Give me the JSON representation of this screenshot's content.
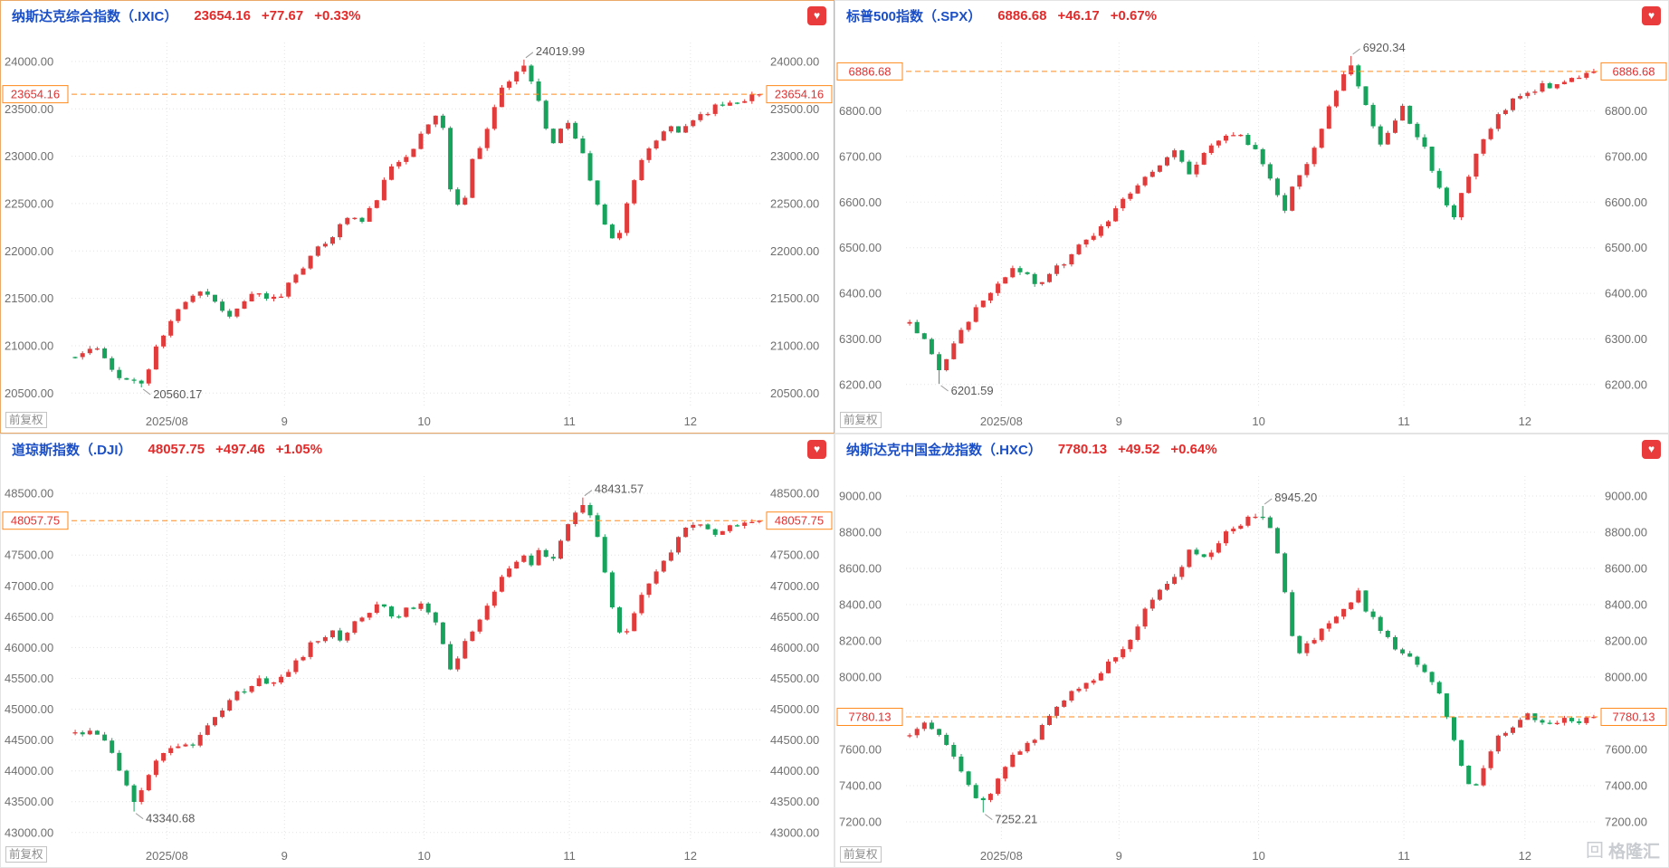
{
  "page": {
    "background": "#ffffff"
  },
  "watermark": {
    "text": "格隆汇"
  },
  "icons": {
    "heart_glyph": "♥",
    "logo_glyph": "回"
  },
  "colors": {
    "up_candle": "#e23b3b",
    "down_candle": "#18a35c",
    "current_price_line": "#ff8a1e",
    "current_price_text": "#e03131",
    "index_title": "#1a4fc8",
    "quote_up_text": "#e22a2a",
    "grid": "#e3e3e3",
    "axis_text": "#6f6f6f",
    "annotation_text": "#595959",
    "favorite_badge": "#e93b3b",
    "selected_panel_border": "#eba969"
  },
  "chart_data": [
    {
      "type": "candlestick",
      "symbol": ".IXIC",
      "title": "纳斯达克综合指数（.IXIC）",
      "price": "23654.16",
      "change": "+77.67",
      "change_pct": "+0.33%",
      "current": 23654.16,
      "adjust_label": "前复权",
      "ylim": [
        20350,
        24200
      ],
      "yticks": [
        24000,
        23500,
        23000,
        22500,
        22000,
        21500,
        21000,
        20500
      ],
      "xticks": [
        "2025/08",
        "9",
        "10",
        "11",
        "12"
      ],
      "xtick_positions": [
        0.138,
        0.308,
        0.51,
        0.72,
        0.895
      ],
      "high_annotation": {
        "label": "24019.99",
        "value": 24019.99,
        "f": 0.655
      },
      "low_annotation": {
        "label": "20560.17",
        "value": 20560.17,
        "f": 0.1
      },
      "price_path": [
        [
          0,
          20880
        ],
        [
          0.03,
          20990
        ],
        [
          0.05,
          20760
        ],
        [
          0.075,
          20640
        ],
        [
          0.1,
          20600
        ],
        [
          0.12,
          21000
        ],
        [
          0.14,
          21250
        ],
        [
          0.16,
          21480
        ],
        [
          0.18,
          21600
        ],
        [
          0.2,
          21520
        ],
        [
          0.22,
          21310
        ],
        [
          0.24,
          21400
        ],
        [
          0.26,
          21570
        ],
        [
          0.28,
          21470
        ],
        [
          0.3,
          21520
        ],
        [
          0.32,
          21750
        ],
        [
          0.34,
          21900
        ],
        [
          0.36,
          22050
        ],
        [
          0.38,
          22200
        ],
        [
          0.4,
          22380
        ],
        [
          0.42,
          22300
        ],
        [
          0.44,
          22550
        ],
        [
          0.46,
          22850
        ],
        [
          0.48,
          23000
        ],
        [
          0.5,
          23150
        ],
        [
          0.52,
          23380
        ],
        [
          0.535,
          23480
        ],
        [
          0.55,
          22550
        ],
        [
          0.565,
          22420
        ],
        [
          0.58,
          22950
        ],
        [
          0.6,
          23250
        ],
        [
          0.62,
          23650
        ],
        [
          0.64,
          23850
        ],
        [
          0.655,
          23980
        ],
        [
          0.67,
          23780
        ],
        [
          0.685,
          23350
        ],
        [
          0.7,
          23100
        ],
        [
          0.715,
          23420
        ],
        [
          0.73,
          23220
        ],
        [
          0.745,
          22950
        ],
        [
          0.76,
          22600
        ],
        [
          0.775,
          22250
        ],
        [
          0.79,
          22060
        ],
        [
          0.805,
          22480
        ],
        [
          0.82,
          22820
        ],
        [
          0.835,
          23020
        ],
        [
          0.85,
          23160
        ],
        [
          0.865,
          23320
        ],
        [
          0.88,
          23230
        ],
        [
          0.9,
          23380
        ],
        [
          0.92,
          23470
        ],
        [
          0.95,
          23560
        ],
        [
          1,
          23654.16
        ]
      ]
    },
    {
      "type": "candlestick",
      "symbol": ".SPX",
      "title": "标普500指数（.SPX）",
      "price": "6886.68",
      "change": "+46.17",
      "change_pct": "+0.67%",
      "current": 6886.68,
      "adjust_label": "前复权",
      "ylim": [
        6150,
        6950
      ],
      "yticks": [
        6800,
        6700,
        6600,
        6500,
        6400,
        6300,
        6200
      ],
      "xticks": [
        "2025/08",
        "9",
        "10",
        "11",
        "12"
      ],
      "xtick_positions": [
        0.138,
        0.308,
        0.51,
        0.72,
        0.895
      ],
      "high_annotation": {
        "label": "6920.34",
        "value": 6920.34,
        "f": 0.645
      },
      "low_annotation": {
        "label": "6201.59",
        "value": 6201.59,
        "f": 0.045
      },
      "price_path": [
        [
          0,
          6335
        ],
        [
          0.02,
          6305
        ],
        [
          0.045,
          6225
        ],
        [
          0.07,
          6305
        ],
        [
          0.09,
          6355
        ],
        [
          0.11,
          6395
        ],
        [
          0.13,
          6425
        ],
        [
          0.15,
          6455
        ],
        [
          0.17,
          6440
        ],
        [
          0.19,
          6415
        ],
        [
          0.21,
          6450
        ],
        [
          0.23,
          6475
        ],
        [
          0.25,
          6505
        ],
        [
          0.27,
          6525
        ],
        [
          0.29,
          6565
        ],
        [
          0.31,
          6595
        ],
        [
          0.33,
          6640
        ],
        [
          0.35,
          6665
        ],
        [
          0.37,
          6695
        ],
        [
          0.39,
          6715
        ],
        [
          0.41,
          6660
        ],
        [
          0.43,
          6705
        ],
        [
          0.45,
          6740
        ],
        [
          0.47,
          6755
        ],
        [
          0.49,
          6735
        ],
        [
          0.51,
          6705
        ],
        [
          0.53,
          6645
        ],
        [
          0.545,
          6575
        ],
        [
          0.56,
          6635
        ],
        [
          0.58,
          6685
        ],
        [
          0.6,
          6745
        ],
        [
          0.62,
          6835
        ],
        [
          0.645,
          6905
        ],
        [
          0.66,
          6845
        ],
        [
          0.675,
          6785
        ],
        [
          0.69,
          6715
        ],
        [
          0.705,
          6775
        ],
        [
          0.72,
          6805
        ],
        [
          0.735,
          6765
        ],
        [
          0.75,
          6725
        ],
        [
          0.765,
          6665
        ],
        [
          0.78,
          6605
        ],
        [
          0.795,
          6565
        ],
        [
          0.81,
          6635
        ],
        [
          0.825,
          6695
        ],
        [
          0.84,
          6745
        ],
        [
          0.855,
          6775
        ],
        [
          0.87,
          6805
        ],
        [
          0.885,
          6825
        ],
        [
          0.9,
          6845
        ],
        [
          0.93,
          6855
        ],
        [
          0.96,
          6865
        ],
        [
          1,
          6886.68
        ]
      ]
    },
    {
      "type": "candlestick",
      "symbol": ".DJI",
      "title": "道琼斯指数（.DJI）",
      "price": "48057.75",
      "change": "+497.46",
      "change_pct": "+1.05%",
      "current": 48057.75,
      "adjust_label": "前复权",
      "ylim": [
        42850,
        48780
      ],
      "yticks": [
        48500,
        48000,
        47500,
        47000,
        46500,
        46000,
        45500,
        45000,
        44500,
        44000,
        43500,
        43000
      ],
      "xticks": [
        "2025/08",
        "9",
        "10",
        "11",
        "12"
      ],
      "xtick_positions": [
        0.138,
        0.308,
        0.51,
        0.72,
        0.895
      ],
      "high_annotation": {
        "label": "48431.57",
        "value": 48431.57,
        "f": 0.745
      },
      "low_annotation": {
        "label": "43340.68",
        "value": 43340.68,
        "f": 0.09
      },
      "price_path": [
        [
          0,
          44600
        ],
        [
          0.025,
          44650
        ],
        [
          0.05,
          44400
        ],
        [
          0.07,
          43900
        ],
        [
          0.09,
          43450
        ],
        [
          0.11,
          44000
        ],
        [
          0.13,
          44300
        ],
        [
          0.15,
          44450
        ],
        [
          0.17,
          44350
        ],
        [
          0.19,
          44700
        ],
        [
          0.21,
          44950
        ],
        [
          0.23,
          45200
        ],
        [
          0.25,
          45350
        ],
        [
          0.27,
          45500
        ],
        [
          0.29,
          45400
        ],
        [
          0.31,
          45550
        ],
        [
          0.33,
          45850
        ],
        [
          0.35,
          46100
        ],
        [
          0.37,
          46250
        ],
        [
          0.39,
          46150
        ],
        [
          0.41,
          46400
        ],
        [
          0.43,
          46600
        ],
        [
          0.45,
          46700
        ],
        [
          0.47,
          46450
        ],
        [
          0.49,
          46650
        ],
        [
          0.51,
          46700
        ],
        [
          0.53,
          46300
        ],
        [
          0.55,
          45650
        ],
        [
          0.57,
          46050
        ],
        [
          0.59,
          46450
        ],
        [
          0.61,
          46850
        ],
        [
          0.63,
          47250
        ],
        [
          0.65,
          47500
        ],
        [
          0.665,
          47350
        ],
        [
          0.68,
          47600
        ],
        [
          0.695,
          47400
        ],
        [
          0.71,
          47700
        ],
        [
          0.725,
          48050
        ],
        [
          0.745,
          48350
        ],
        [
          0.76,
          47900
        ],
        [
          0.775,
          47200
        ],
        [
          0.79,
          46400
        ],
        [
          0.8,
          46050
        ],
        [
          0.815,
          46450
        ],
        [
          0.83,
          46900
        ],
        [
          0.845,
          47200
        ],
        [
          0.86,
          47450
        ],
        [
          0.875,
          47650
        ],
        [
          0.89,
          47900
        ],
        [
          0.905,
          48000
        ],
        [
          0.92,
          47900
        ],
        [
          0.94,
          47850
        ],
        [
          0.96,
          48000
        ],
        [
          1,
          48057.75
        ]
      ]
    },
    {
      "type": "candlestick",
      "symbol": ".HXC",
      "title": "纳斯达克中国金龙指数（.HXC）",
      "price": "7780.13",
      "change": "+49.52",
      "change_pct": "+0.64%",
      "current": 7780.13,
      "adjust_label": "前复权",
      "ylim": [
        7090,
        9110
      ],
      "yticks": [
        9000,
        8800,
        8600,
        8400,
        8200,
        8000,
        7800,
        7600,
        7400,
        7200
      ],
      "xticks": [
        "2025/08",
        "9",
        "10",
        "11",
        "12"
      ],
      "xtick_positions": [
        0.138,
        0.308,
        0.51,
        0.72,
        0.895
      ],
      "high_annotation": {
        "label": "8945.20",
        "value": 8945.2,
        "f": 0.515
      },
      "low_annotation": {
        "label": "7252.21",
        "value": 7252.21,
        "f": 0.105
      },
      "price_path": [
        [
          0,
          7690
        ],
        [
          0.02,
          7760
        ],
        [
          0.04,
          7700
        ],
        [
          0.06,
          7600
        ],
        [
          0.08,
          7450
        ],
        [
          0.105,
          7300
        ],
        [
          0.13,
          7440
        ],
        [
          0.15,
          7550
        ],
        [
          0.17,
          7620
        ],
        [
          0.19,
          7700
        ],
        [
          0.21,
          7800
        ],
        [
          0.23,
          7900
        ],
        [
          0.25,
          7960
        ],
        [
          0.27,
          8000
        ],
        [
          0.29,
          8080
        ],
        [
          0.31,
          8150
        ],
        [
          0.33,
          8260
        ],
        [
          0.35,
          8420
        ],
        [
          0.37,
          8480
        ],
        [
          0.39,
          8560
        ],
        [
          0.41,
          8700
        ],
        [
          0.43,
          8650
        ],
        [
          0.45,
          8750
        ],
        [
          0.47,
          8820
        ],
        [
          0.49,
          8870
        ],
        [
          0.515,
          8900
        ],
        [
          0.53,
          8820
        ],
        [
          0.55,
          8450
        ],
        [
          0.565,
          8100
        ],
        [
          0.58,
          8180
        ],
        [
          0.6,
          8250
        ],
        [
          0.62,
          8320
        ],
        [
          0.64,
          8400
        ],
        [
          0.655,
          8470
        ],
        [
          0.67,
          8350
        ],
        [
          0.685,
          8280
        ],
        [
          0.7,
          8200
        ],
        [
          0.72,
          8120
        ],
        [
          0.74,
          8080
        ],
        [
          0.76,
          8000
        ],
        [
          0.78,
          7850
        ],
        [
          0.8,
          7600
        ],
        [
          0.815,
          7420
        ],
        [
          0.83,
          7380
        ],
        [
          0.845,
          7550
        ],
        [
          0.86,
          7680
        ],
        [
          0.875,
          7720
        ],
        [
          0.89,
          7760
        ],
        [
          0.905,
          7800
        ],
        [
          0.92,
          7740
        ],
        [
          0.94,
          7760
        ],
        [
          0.97,
          7750
        ],
        [
          1,
          7780.13
        ]
      ]
    }
  ]
}
